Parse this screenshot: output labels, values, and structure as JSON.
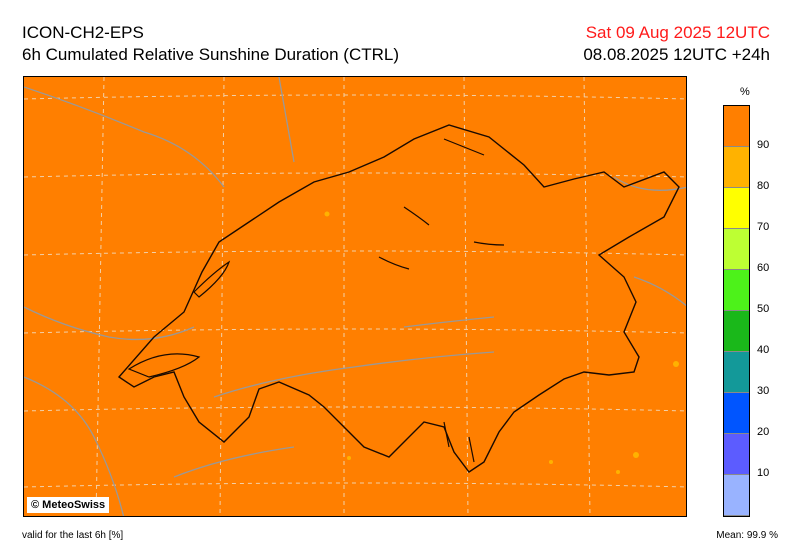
{
  "header": {
    "model": "ICON-CH2-EPS",
    "product": "6h Cumulated Relative Sunshine Duration (CTRL)",
    "valid_date": "Sat 09 Aug 2025 12UTC",
    "run_info": "08.08.2025 12UTC +24h"
  },
  "map": {
    "copyright": "© MeteoSwiss",
    "fill_color": "#ff7f00"
  },
  "legend": {
    "unit": "%",
    "colors": [
      "#ff7f00",
      "#ffb200",
      "#ffff00",
      "#bdff33",
      "#4df21a",
      "#1ab81a",
      "#139999",
      "#0055ff",
      "#5c5cff",
      "#99b3ff"
    ],
    "labels": [
      "90",
      "80",
      "70",
      "60",
      "50",
      "40",
      "30",
      "20",
      "10"
    ]
  },
  "footer": {
    "validity": "valid for the last 6h [%]",
    "mean": "Mean:  99.9 %"
  }
}
